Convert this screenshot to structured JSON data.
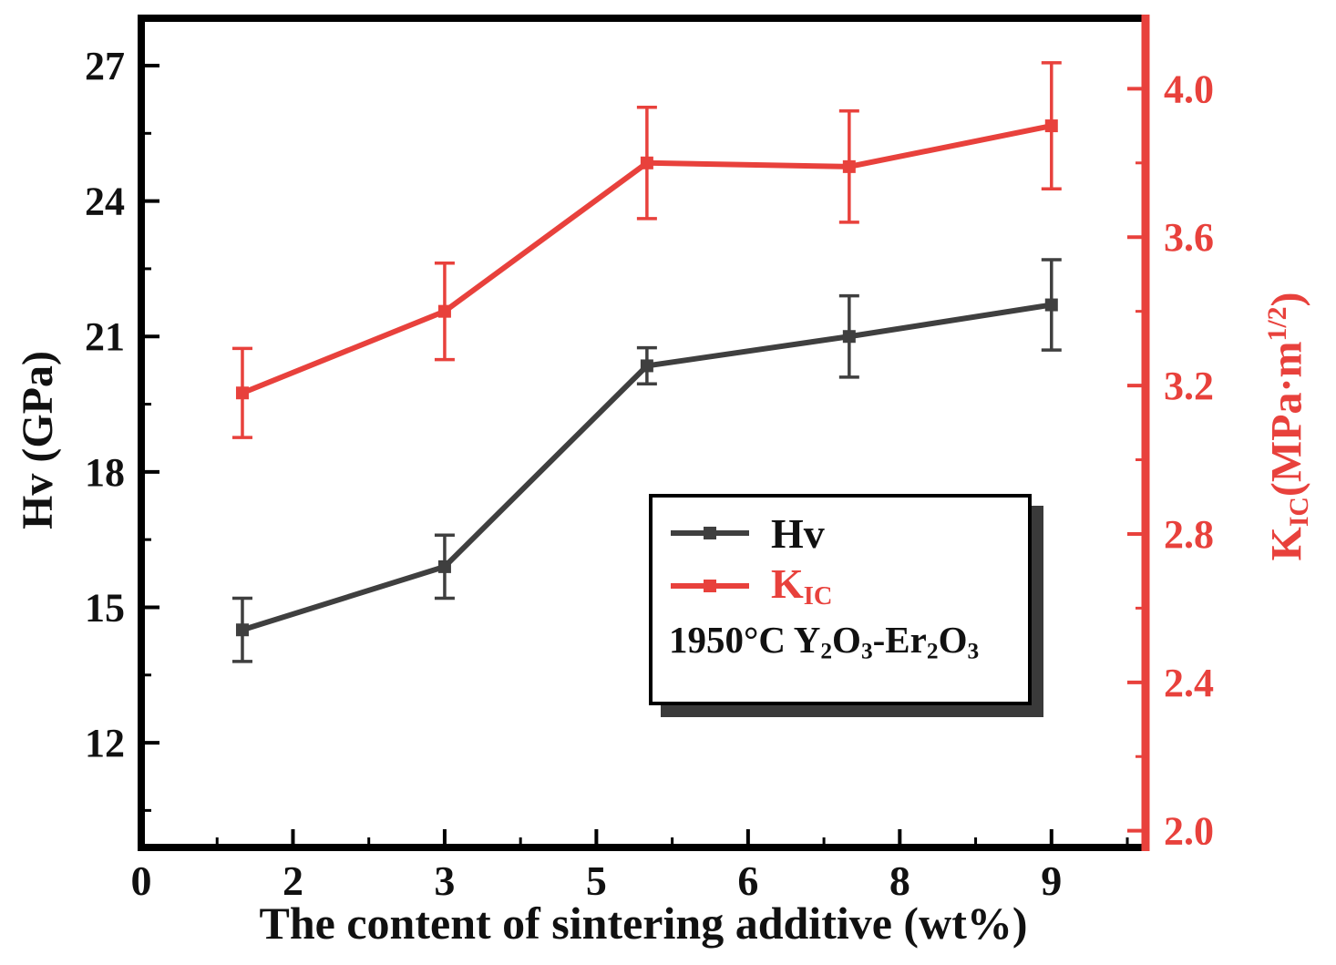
{
  "figure": {
    "xlabel": "The content of sintering additive (wt%)",
    "ylabel_left": "Hv (GPa)",
    "ylabel_right_parts": [
      {
        "text": "K"
      },
      {
        "text": "IC",
        "sub": true
      },
      {
        "text": "(MPa·m"
      },
      {
        "text": "1/2",
        "sup": true
      },
      {
        "text": ")"
      }
    ],
    "legend": {
      "hv_label": "Hv",
      "kic_parts": [
        {
          "text": "K"
        },
        {
          "text": "IC",
          "sub": true
        }
      ],
      "annotation_parts": [
        {
          "text": "1950°C Y"
        },
        {
          "text": "2",
          "sub": true
        },
        {
          "text": "O"
        },
        {
          "text": "3",
          "sub": true
        },
        {
          "text": "-Er"
        },
        {
          "text": "2",
          "sub": true
        },
        {
          "text": "O"
        },
        {
          "text": "3",
          "sub": true
        }
      ]
    }
  },
  "colors": {
    "hv": "#3f3f3f",
    "kic": "#e8413c",
    "frame": "#000000",
    "text": "#111111",
    "shadow": "#3a3a3a"
  },
  "chart_data": {
    "type": "line",
    "title": "",
    "xlabel": "The content of sintering additive (wt%)",
    "ylabel_left": "Hv (GPa)",
    "ylabel_right": "KIC (MPa·m^1/2)",
    "grid": false,
    "legend_position": "center-right",
    "x": [
      1,
      3,
      5,
      7,
      9
    ],
    "series": [
      {
        "name": "Hv",
        "axis": "left",
        "color_key": "hv",
        "marker": "square",
        "values": [
          14.5,
          15.9,
          20.35,
          21.0,
          21.7
        ],
        "errors": [
          0.7,
          0.7,
          0.4,
          0.9,
          1.0
        ]
      },
      {
        "name": "KIC",
        "axis": "right",
        "color_key": "kic",
        "marker": "square",
        "values": [
          3.18,
          3.4,
          3.8,
          3.79,
          3.9
        ],
        "errors": [
          0.12,
          0.13,
          0.15,
          0.15,
          0.17
        ]
      }
    ],
    "x_axis": {
      "domain": [
        0,
        9.93
      ],
      "tick_values": [
        0,
        1.5,
        3,
        4.5,
        6,
        7.5,
        9
      ],
      "tick_labels": [
        "0",
        "2",
        "3",
        "5",
        "6",
        "8",
        "9"
      ],
      "minor_ticks": [
        0.75,
        2.25,
        3.75,
        5.25,
        6.75,
        8.25,
        9.75
      ]
    },
    "left_axis": {
      "domain": [
        9.68,
        28.05
      ],
      "tick_values": [
        12,
        15,
        18,
        21,
        24,
        27
      ],
      "tick_labels": [
        "12",
        "15",
        "18",
        "21",
        "24",
        "27"
      ],
      "minor_ticks": [
        10.5,
        13.5,
        16.5,
        19.5,
        22.5,
        25.5
      ]
    },
    "right_axis": {
      "domain": [
        1.955,
        4.19
      ],
      "tick_values": [
        2.0,
        2.4,
        2.8,
        3.2,
        3.6,
        4.0
      ],
      "tick_labels": [
        "2.0",
        "2.4",
        "2.8",
        "3.2",
        "3.6",
        "4.0"
      ],
      "minor_ticks": [
        2.2,
        2.6,
        3.0,
        3.4,
        3.8
      ]
    },
    "annotation": "1950°C Y2O3-Er2O3"
  }
}
